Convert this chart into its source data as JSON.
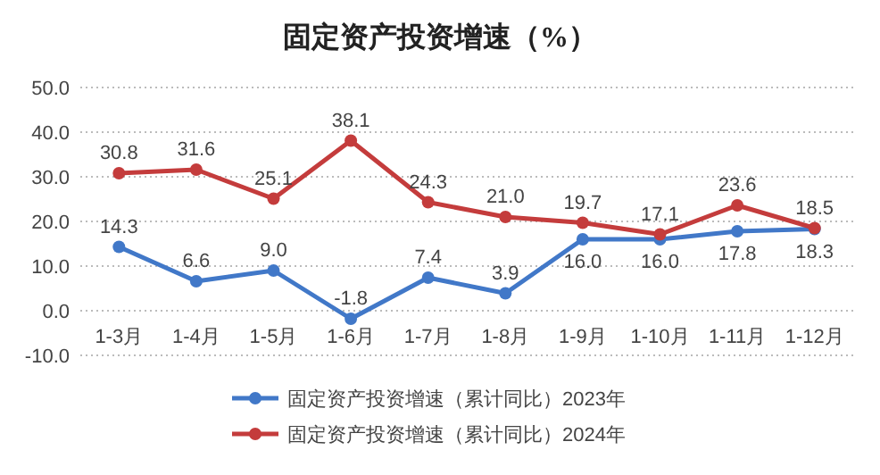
{
  "chart_data": {
    "type": "line",
    "title": "固定资产投资增速（%）",
    "categories": [
      "1-3月",
      "1-4月",
      "1-5月",
      "1-6月",
      "1-7月",
      "1-8月",
      "1-9月",
      "1-10月",
      "1-11月",
      "1-12月"
    ],
    "series": [
      {
        "name": "固定资产投资增速（累计同比）2023年",
        "color": "#4178c8",
        "values": [
          14.3,
          6.6,
          9.0,
          -1.8,
          7.4,
          3.9,
          16.0,
          16.0,
          17.8,
          18.3
        ],
        "value_labels": [
          "14.3",
          "6.6",
          "9.0",
          "-1.8",
          "7.4",
          "3.9",
          "16.0",
          "16.0",
          "17.8",
          "18.3"
        ]
      },
      {
        "name": "固定资产投资增速（累计同比）2024年",
        "color": "#c43c3c",
        "values": [
          30.8,
          31.6,
          25.1,
          38.1,
          24.3,
          21.0,
          19.7,
          17.1,
          23.6,
          18.5
        ],
        "value_labels": [
          "30.8",
          "31.6",
          "25.1",
          "38.1",
          "24.3",
          "21.0",
          "19.7",
          "17.1",
          "23.6",
          "18.5"
        ]
      }
    ],
    "ylim": [
      -10,
      50
    ],
    "yticks": [
      {
        "value": -10,
        "label": "-10.0"
      },
      {
        "value": 0,
        "label": "0.0"
      },
      {
        "value": 10,
        "label": "10.0"
      },
      {
        "value": 20,
        "label": "20.0"
      },
      {
        "value": 30,
        "label": "30.0"
      },
      {
        "value": 40,
        "label": "40.0"
      },
      {
        "value": 50,
        "label": "50.0"
      }
    ],
    "grid": "y",
    "legend": "bottom",
    "marker": "circle"
  }
}
